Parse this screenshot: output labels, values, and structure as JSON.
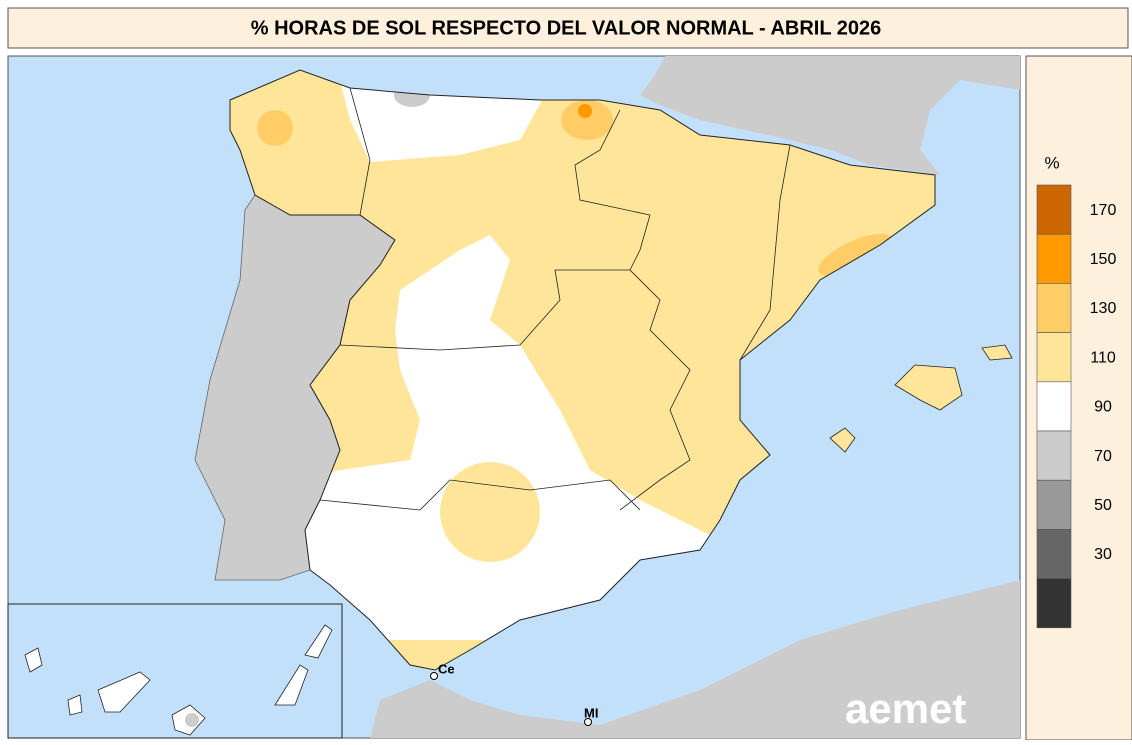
{
  "header": {
    "title": "% HORAS DE SOL RESPECTO DEL VALOR NORMAL - ABRIL 2026"
  },
  "legend": {
    "unit": "%",
    "colors": [
      "#cc6600",
      "#ff9900",
      "#ffcc66",
      "#ffe599",
      "#ffffff",
      "#cccccc",
      "#999999",
      "#666666",
      "#333333"
    ],
    "ticks": [
      170,
      150,
      130,
      110,
      90,
      70,
      50,
      30
    ]
  },
  "places": [
    "Ce",
    "MI"
  ],
  "logo": "aemet"
}
